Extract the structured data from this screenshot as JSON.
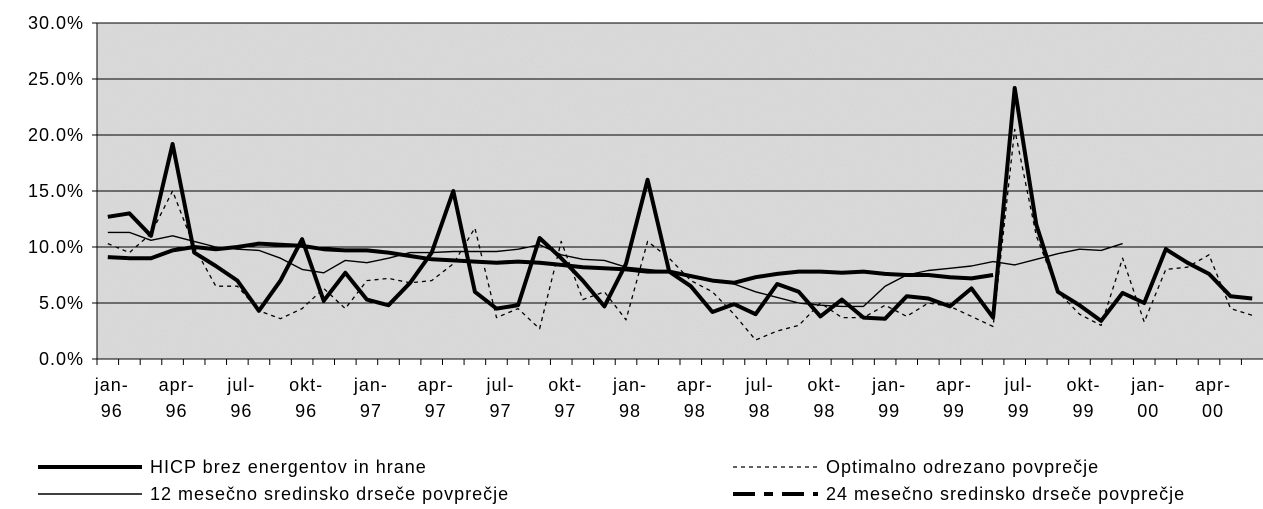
{
  "chart_data": {
    "type": "line",
    "categories": [
      "jan-96",
      null,
      null,
      "apr-96",
      null,
      null,
      "jul-96",
      null,
      null,
      "okt-96",
      null,
      null,
      "jan-97",
      null,
      null,
      "apr-97",
      null,
      null,
      "jul-97",
      null,
      null,
      "okt-97",
      null,
      null,
      "jan-98",
      null,
      null,
      "apr-98",
      null,
      null,
      "jul-98",
      null,
      null,
      "okt-98",
      null,
      null,
      "jan-99",
      null,
      null,
      "apr-99",
      null,
      null,
      "jul-99",
      null,
      null,
      "okt-99",
      null,
      null,
      "jan-00",
      null,
      null,
      "apr-00",
      null,
      null
    ],
    "series": [
      {
        "name": "HICP brez energentov in hrane",
        "color": "#000000",
        "values": [
          12.7,
          13.0,
          11.0,
          19.2,
          9.5,
          8.3,
          7.0,
          4.3,
          7.0,
          10.7,
          5.2,
          7.7,
          5.3,
          4.8,
          6.8,
          9.5,
          15.0,
          6.0,
          4.5,
          4.8,
          10.8,
          9.0,
          7.0,
          4.7,
          8.5,
          16.0,
          7.8,
          6.5,
          4.2,
          4.9,
          4.0,
          6.7,
          6.0,
          3.8,
          5.3,
          3.7,
          3.6,
          5.6,
          5.4,
          4.7,
          6.3,
          3.7,
          24.2,
          12.0,
          6.0,
          4.8,
          3.4,
          5.9,
          5.0,
          9.8,
          8.6,
          7.6,
          5.6,
          5.4
        ]
      },
      {
        "name": "Optimalno odrezano povprečje",
        "color": "#000000",
        "values": [
          10.3,
          9.5,
          11.2,
          15.0,
          10.0,
          6.5,
          6.5,
          4.3,
          3.6,
          4.5,
          6.3,
          4.5,
          7.0,
          7.2,
          6.8,
          7.0,
          8.5,
          11.7,
          3.7,
          4.5,
          2.7,
          10.5,
          5.3,
          6.0,
          3.5,
          10.5,
          9.0,
          7.0,
          6.0,
          4.0,
          1.7,
          2.5,
          3.0,
          5.0,
          3.7,
          3.7,
          4.8,
          3.8,
          5.0,
          4.7,
          3.8,
          2.9,
          20.5,
          11.0,
          6.0,
          4.0,
          3.0,
          9.0,
          3.3,
          8.0,
          8.2,
          9.3,
          4.5,
          3.9
        ]
      },
      {
        "name": "12 mesečno sredinsko drseče povprečje",
        "color": "#000000",
        "values": [
          11.3,
          11.3,
          10.6,
          11.0,
          10.5,
          10.0,
          9.8,
          9.7,
          9.0,
          8.0,
          7.7,
          8.8,
          8.6,
          9.0,
          9.5,
          9.5,
          9.6,
          9.6,
          9.6,
          9.8,
          10.2,
          9.3,
          8.9,
          8.8,
          8.2,
          8.0,
          7.8,
          7.5,
          7.0,
          6.7,
          6.0,
          5.5,
          5.0,
          4.8,
          4.7,
          4.7,
          6.5,
          7.5,
          7.9,
          8.1,
          8.3,
          8.7,
          8.4,
          8.9,
          9.4,
          9.8,
          9.7,
          10.3,
          null,
          null,
          null,
          null,
          null,
          null
        ]
      },
      {
        "name": "24 mesečno sredinsko drseče povprečje",
        "color": "#000000",
        "values": [
          9.1,
          9.0,
          9.0,
          9.7,
          10.0,
          9.8,
          10.0,
          10.3,
          10.2,
          10.1,
          9.8,
          9.7,
          9.7,
          9.5,
          9.2,
          8.9,
          8.8,
          8.7,
          8.6,
          8.7,
          8.6,
          8.4,
          8.2,
          8.1,
          8.0,
          7.8,
          7.8,
          7.4,
          7.0,
          6.8,
          7.3,
          7.6,
          7.8,
          7.8,
          7.7,
          7.8,
          7.6,
          7.5,
          7.5,
          7.3,
          7.2,
          7.5,
          null,
          null,
          null,
          null,
          null,
          null,
          null,
          null,
          null,
          null,
          null,
          null
        ]
      }
    ],
    "ylim": [
      0,
      30
    ],
    "yticks": [
      {
        "value": 0,
        "label": "0.0%"
      },
      {
        "value": 5,
        "label": "5.0%"
      },
      {
        "value": 10,
        "label": "10.0%"
      },
      {
        "value": 15,
        "label": "15.0%"
      },
      {
        "value": 20,
        "label": "20.0%"
      },
      {
        "value": 25,
        "label": "25.0%"
      },
      {
        "value": 30,
        "label": "30.0%"
      }
    ],
    "grid": true
  }
}
